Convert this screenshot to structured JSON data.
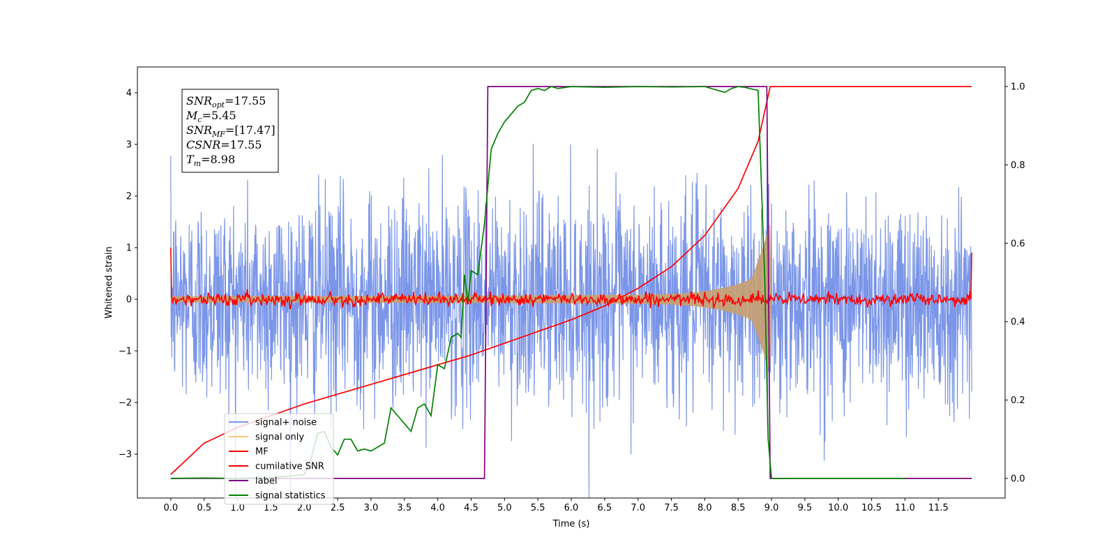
{
  "chart_data": {
    "type": "line",
    "xlabel": "Time (s)",
    "ylabel": "Whitened strain",
    "xlim": [
      -0.5,
      12.5
    ],
    "ylim": [
      -3.85,
      4.5
    ],
    "y2lim": [
      -0.05,
      1.05
    ],
    "xticks": [
      "0.0",
      "0.5",
      "1.0",
      "1.5",
      "2.0",
      "2.5",
      "3.0",
      "3.5",
      "4.0",
      "4.5",
      "5.0",
      "5.5",
      "6.0",
      "6.5",
      "7.0",
      "7.5",
      "8.0",
      "8.5",
      "9.0",
      "9.5",
      "10.0",
      "10.5",
      "11.0",
      "11.5"
    ],
    "yticks": [
      "−3",
      "−2",
      "−1",
      "0",
      "1",
      "2",
      "3",
      "4"
    ],
    "y2ticks": [
      "0.0",
      "0.2",
      "0.4",
      "0.6",
      "0.8",
      "1.0"
    ],
    "grid": false,
    "legend_position": "lower-left",
    "annotation": [
      {
        "base": "SNR",
        "sub": "opt",
        "value": "=17.55"
      },
      {
        "base": "M",
        "sub": "c",
        "value": "=5.45"
      },
      {
        "base": "SNR",
        "sub": "MF",
        "value": "=[17.47]"
      },
      {
        "base": "CSNR",
        "sub": "",
        "value": "=17.55"
      },
      {
        "base": "T",
        "sub": "m",
        "value": "=8.98"
      }
    ],
    "series": [
      {
        "name": "signal+ noise",
        "color": "#7b96e8",
        "axis": "left",
        "x_range": [
          0,
          12
        ],
        "amplitude": 1.0,
        "peak": 4.0
      },
      {
        "name": "signal only",
        "color": "#c8a070",
        "axis": "left",
        "x_range": [
          0,
          9.0
        ],
        "chirp_start_amplitude": 0.06,
        "chirp_peak_amplitude": 1.45,
        "merger_time": 8.98
      },
      {
        "name": "MF",
        "color": "#ff0000",
        "axis": "left",
        "x_range": [
          0,
          12
        ],
        "noise_amplitude": 0.06,
        "edge_values": [
          1.0,
          0.9
        ]
      },
      {
        "name": "cumilative SNR",
        "color": "#ff0000",
        "axis": "right",
        "x": [
          0,
          0.5,
          1.0,
          1.5,
          2.0,
          2.5,
          3.0,
          3.5,
          4.0,
          4.5,
          5.0,
          5.5,
          6.0,
          6.5,
          7.0,
          7.5,
          8.0,
          8.5,
          8.8,
          8.98,
          9.0,
          12.0
        ],
        "y": [
          0.01,
          0.09,
          0.13,
          0.16,
          0.19,
          0.215,
          0.24,
          0.265,
          0.29,
          0.315,
          0.345,
          0.375,
          0.405,
          0.44,
          0.485,
          0.54,
          0.62,
          0.74,
          0.86,
          1.0,
          1.0,
          1.0
        ]
      },
      {
        "name": "label",
        "color": "#800080",
        "axis": "right",
        "x": [
          0,
          4.7,
          4.75,
          8.93,
          8.98,
          12.0
        ],
        "y": [
          0.0,
          0.0,
          1.0,
          1.0,
          0.0,
          0.0
        ]
      },
      {
        "name": "signal statistics",
        "color": "#008000",
        "axis": "right",
        "x": [
          0,
          0.5,
          1.0,
          1.5,
          2.0,
          2.1,
          2.2,
          2.3,
          2.4,
          2.5,
          2.6,
          2.7,
          2.8,
          2.9,
          3.0,
          3.1,
          3.2,
          3.3,
          3.4,
          3.5,
          3.6,
          3.7,
          3.8,
          3.9,
          4.0,
          4.1,
          4.2,
          4.3,
          4.35,
          4.4,
          4.45,
          4.5,
          4.6,
          4.7,
          4.8,
          4.9,
          5.0,
          5.1,
          5.2,
          5.3,
          5.4,
          5.5,
          5.6,
          5.7,
          5.8,
          6.0,
          6.5,
          7.0,
          7.5,
          8.0,
          8.3,
          8.4,
          8.5,
          8.6,
          8.8,
          8.9,
          8.95,
          9.0,
          9.05,
          11.0
        ],
        "y": [
          0.0,
          0.001,
          0.0,
          0.002,
          0.01,
          0.05,
          0.115,
          0.12,
          0.08,
          0.06,
          0.1,
          0.1,
          0.07,
          0.075,
          0.07,
          0.08,
          0.09,
          0.18,
          0.16,
          0.14,
          0.12,
          0.18,
          0.19,
          0.16,
          0.29,
          0.28,
          0.36,
          0.37,
          0.36,
          0.52,
          0.45,
          0.53,
          0.52,
          0.65,
          0.84,
          0.88,
          0.91,
          0.93,
          0.95,
          0.96,
          0.99,
          0.995,
          0.99,
          1.0,
          0.995,
          1.0,
          0.998,
          1.0,
          0.999,
          1.0,
          0.985,
          0.995,
          1.0,
          0.998,
          0.99,
          0.5,
          0.1,
          0.0,
          0.0,
          0.0
        ]
      }
    ]
  }
}
